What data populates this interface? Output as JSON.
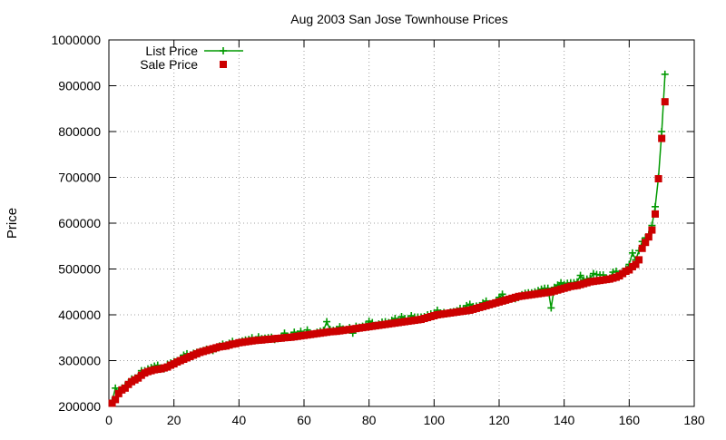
{
  "chart_data": {
    "type": "scatter",
    "title": "Aug 2003 San Jose Townhouse Prices",
    "xlabel": "",
    "ylabel": "Price",
    "xlim": [
      0,
      180
    ],
    "ylim": [
      200000,
      1000000
    ],
    "x_ticks": [
      0,
      20,
      40,
      60,
      80,
      100,
      120,
      140,
      160,
      180
    ],
    "y_ticks": [
      200000,
      300000,
      400000,
      500000,
      600000,
      700000,
      800000,
      900000,
      1000000
    ],
    "grid": true,
    "legend_position": "top-left",
    "series": [
      {
        "name": "List Price",
        "style": "linespoints",
        "marker": "plus",
        "color": "#009900",
        "x": [
          1,
          2,
          3,
          4,
          5,
          6,
          7,
          8,
          9,
          10,
          11,
          12,
          13,
          14,
          15,
          16,
          17,
          18,
          19,
          20,
          21,
          22,
          23,
          24,
          25,
          26,
          27,
          28,
          29,
          30,
          31,
          32,
          33,
          34,
          35,
          36,
          37,
          38,
          39,
          40,
          41,
          42,
          43,
          44,
          45,
          46,
          47,
          48,
          49,
          50,
          51,
          52,
          53,
          54,
          55,
          56,
          57,
          58,
          59,
          60,
          61,
          62,
          63,
          64,
          65,
          66,
          67,
          68,
          69,
          70,
          71,
          72,
          73,
          74,
          75,
          76,
          77,
          78,
          79,
          80,
          81,
          82,
          83,
          84,
          85,
          86,
          87,
          88,
          89,
          90,
          91,
          92,
          93,
          94,
          95,
          96,
          97,
          98,
          99,
          100,
          101,
          102,
          103,
          104,
          105,
          106,
          107,
          108,
          109,
          110,
          111,
          112,
          113,
          114,
          115,
          116,
          117,
          118,
          119,
          120,
          121,
          122,
          123,
          124,
          125,
          126,
          127,
          128,
          129,
          130,
          131,
          132,
          133,
          134,
          135,
          136,
          137,
          138,
          139,
          140,
          141,
          142,
          143,
          144,
          145,
          146,
          147,
          148,
          149,
          150,
          151,
          152,
          153,
          154,
          155,
          156,
          157,
          158,
          159,
          160,
          161,
          162,
          163,
          164,
          165,
          166,
          167,
          168,
          169,
          170,
          171
        ],
        "values": [
          212000,
          240000,
          232000,
          240000,
          245000,
          252000,
          260000,
          262000,
          265000,
          278000,
          278000,
          282000,
          285000,
          288000,
          290000,
          284000,
          282000,
          292000,
          295000,
          298000,
          300000,
          305000,
          312000,
          315000,
          312000,
          316000,
          318000,
          320000,
          322000,
          325000,
          324000,
          322000,
          326000,
          332000,
          336000,
          334000,
          338000,
          342000,
          337000,
          340000,
          343000,
          345000,
          346000,
          350000,
          344000,
          352000,
          348000,
          349000,
          350000,
          351000,
          346000,
          348000,
          352000,
          360000,
          353000,
          355000,
          362000,
          358000,
          364000,
          355000,
          367000,
          357000,
          358000,
          362000,
          364000,
          366000,
          385000,
          368000,
          366000,
          368000,
          374000,
          369000,
          368000,
          372000,
          360000,
          375000,
          373000,
          375000,
          378000,
          386000,
          383000,
          377000,
          380000,
          384000,
          385000,
          383000,
          388000,
          392000,
          387000,
          396000,
          392000,
          390000,
          398000,
          395000,
          395000,
          395000,
          396000,
          400000,
          402000,
          403000,
          410000,
          404000,
          405000,
          403000,
          406000,
          407000,
          409000,
          414000,
          413000,
          420000,
          423000,
          418000,
          419000,
          420000,
          426000,
          430000,
          424000,
          425000,
          428000,
          438000,
          445000,
          431000,
          434000,
          436000,
          435000,
          438000,
          444000,
          447000,
          448000,
          448000,
          450000,
          453000,
          456000,
          458000,
          458000,
          415000,
          460000,
          465000,
          470000,
          466000,
          469000,
          470000,
          470000,
          472000,
          486000,
          476000,
          478000,
          480000,
          490000,
          488000,
          487000,
          487000,
          480000,
          480000,
          493000,
          495000,
          490000,
          495000,
          500000,
          510000,
          535000,
          520000,
          540000,
          560000,
          568000,
          575000,
          595000,
          636000,
          700000,
          800000,
          925000
        ]
      },
      {
        "name": "Sale Price",
        "style": "points",
        "marker": "square",
        "color": "#cc0000",
        "x": [
          1,
          2,
          3,
          4,
          5,
          6,
          7,
          8,
          9,
          10,
          11,
          12,
          13,
          14,
          15,
          16,
          17,
          18,
          19,
          20,
          21,
          22,
          23,
          24,
          25,
          26,
          27,
          28,
          29,
          30,
          31,
          32,
          33,
          34,
          35,
          36,
          37,
          38,
          39,
          40,
          41,
          42,
          43,
          44,
          45,
          46,
          47,
          48,
          49,
          50,
          51,
          52,
          53,
          54,
          55,
          56,
          57,
          58,
          59,
          60,
          61,
          62,
          63,
          64,
          65,
          66,
          67,
          68,
          69,
          70,
          71,
          72,
          73,
          74,
          75,
          76,
          77,
          78,
          79,
          80,
          81,
          82,
          83,
          84,
          85,
          86,
          87,
          88,
          89,
          90,
          91,
          92,
          93,
          94,
          95,
          96,
          97,
          98,
          99,
          100,
          101,
          102,
          103,
          104,
          105,
          106,
          107,
          108,
          109,
          110,
          111,
          112,
          113,
          114,
          115,
          116,
          117,
          118,
          119,
          120,
          121,
          122,
          123,
          124,
          125,
          126,
          127,
          128,
          129,
          130,
          131,
          132,
          133,
          134,
          135,
          136,
          137,
          138,
          139,
          140,
          141,
          142,
          143,
          144,
          145,
          146,
          147,
          148,
          149,
          150,
          151,
          152,
          153,
          154,
          155,
          156,
          157,
          158,
          159,
          160,
          161,
          162,
          163,
          164,
          165,
          166,
          167,
          168,
          169,
          170,
          171
        ],
        "values": [
          207000,
          215000,
          228000,
          236000,
          240000,
          248000,
          254000,
          258000,
          262000,
          268000,
          273000,
          276000,
          278000,
          280000,
          281000,
          282000,
          284000,
          286000,
          290000,
          293000,
          297000,
          300000,
          303000,
          306000,
          309000,
          312000,
          315000,
          318000,
          320000,
          322000,
          324000,
          326000,
          328000,
          330000,
          331000,
          332000,
          334000,
          336000,
          337000,
          339000,
          340000,
          341000,
          342000,
          343000,
          344000,
          344500,
          345000,
          346000,
          346500,
          347000,
          348000,
          348500,
          349000,
          350000,
          350500,
          351000,
          352000,
          353000,
          354000,
          355000,
          356000,
          357000,
          358000,
          359000,
          360000,
          361000,
          362000,
          363000,
          363500,
          364000,
          365000,
          366000,
          367000,
          368000,
          369000,
          370000,
          371000,
          372000,
          373000,
          374000,
          375000,
          376000,
          377000,
          378000,
          379000,
          380000,
          381000,
          382000,
          383000,
          384000,
          385000,
          386000,
          387000,
          388000,
          389000,
          390000,
          392000,
          394000,
          396000,
          398000,
          400000,
          401000,
          402000,
          403000,
          404000,
          405000,
          406000,
          407000,
          408000,
          409000,
          410000,
          412000,
          414000,
          416000,
          418000,
          420000,
          422000,
          424000,
          426000,
          428000,
          430000,
          432000,
          434000,
          436000,
          438000,
          440000,
          441000,
          442000,
          443000,
          444000,
          445000,
          446000,
          447000,
          448000,
          449000,
          450000,
          452000,
          454000,
          456000,
          458000,
          460000,
          462000,
          463000,
          464000,
          466000,
          468000,
          470000,
          472000,
          473000,
          474000,
          475000,
          476000,
          477000,
          478000,
          480000,
          482000,
          485000,
          490000,
          495000,
          498000,
          505000,
          510000,
          520000,
          545000,
          558000,
          570000,
          585000,
          620000,
          697000,
          785000,
          865000
        ]
      }
    ]
  }
}
